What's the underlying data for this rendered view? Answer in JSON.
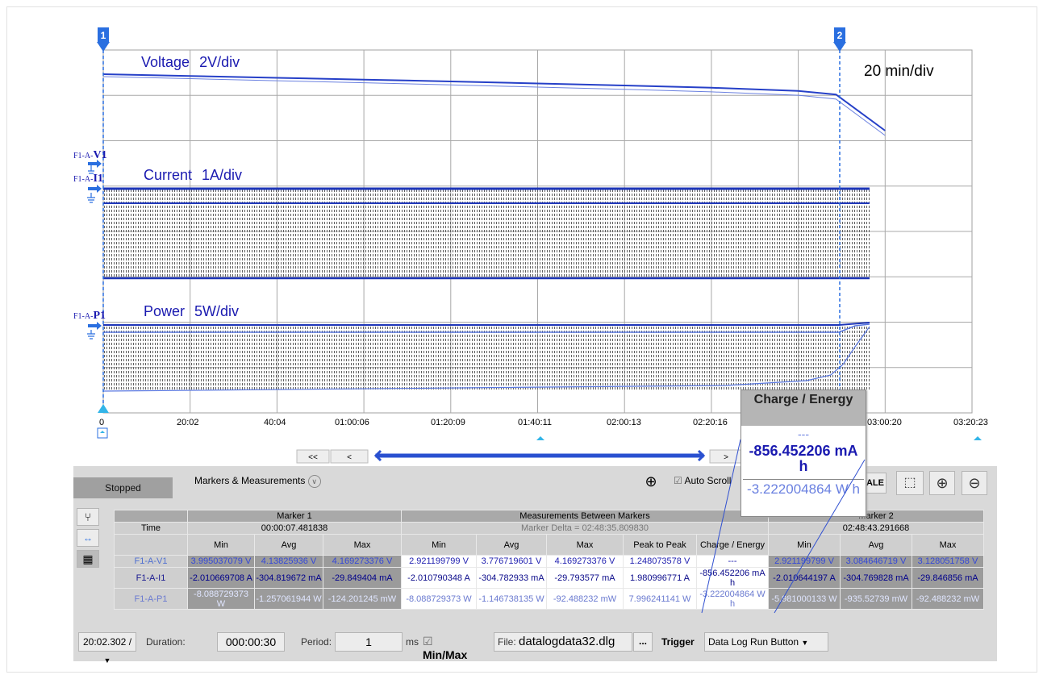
{
  "markers": {
    "m1": "1",
    "m2": "2"
  },
  "plot": {
    "timebase": "20 min/div",
    "voltage": {
      "label": "Voltage",
      "scale": "2V/div",
      "channel_prefix": "F1-A-",
      "channel_name": "V1"
    },
    "current": {
      "label": "Current",
      "scale": "1A/div",
      "channel_prefix": "F1-A-",
      "channel_name": "I1"
    },
    "power": {
      "label": "Power",
      "scale": "5W/div",
      "channel_prefix": "F1-A-",
      "channel_name": "P1"
    }
  },
  "chart_data": {
    "type": "line",
    "x_ticks": [
      "0",
      "20:02",
      "40:04",
      "01:00:06",
      "01:20:09",
      "01:40:11",
      "02:00:13",
      "02:20:16",
      "02:40:18",
      "03:00:20",
      "03:20:23"
    ],
    "series": [
      {
        "name": "F1-A-V1",
        "x_min": [
          0,
          20,
          40,
          60,
          80,
          100,
          120,
          140,
          160,
          168.7,
          180
        ],
        "values_div": [
          0,
          0.08,
          0.16,
          0.24,
          0.32,
          0.41,
          0.5,
          0.6,
          0.74,
          0.9,
          2.5
        ]
      },
      {
        "name": "F1-A-I1",
        "values_div": [
          0,
          0,
          0,
          0,
          0,
          0,
          0,
          0,
          0,
          0,
          0
        ]
      },
      {
        "name": "F1-A-P1",
        "values_div": [
          0,
          0,
          0,
          0,
          0,
          0,
          0,
          0,
          0,
          0,
          0
        ]
      }
    ]
  },
  "nav": {
    "first": "<<",
    "prev": "<",
    "next": ">"
  },
  "panel": {
    "status": "Stopped",
    "markers_measurements": "Markers & Measurements",
    "auto_scroll": "Auto Scroll",
    "scale_btn": "CALE"
  },
  "popup": {
    "header": "Charge / Energy",
    "dashes": "---",
    "charge": "-856.452206 mA h",
    "energy": "-3.222004864 W h"
  },
  "table": {
    "time_label": "Time",
    "m1_title": "Marker 1",
    "m1_time": "00:00:07.481838",
    "between_title": "Measurements Between Markers",
    "between_delta": "Marker Delta = 02:48:35.809830",
    "m2_title": "Marker 2",
    "m2_time": "02:48:43.291668",
    "cols": {
      "min": "Min",
      "avg": "Avg",
      "max": "Max",
      "p2p": "Peak to Peak",
      "charge": "Charge / Energy"
    },
    "row_v": {
      "name": "F1-A-V1",
      "m1_min": "3.995037079 V",
      "m1_avg": "4.13825936 V",
      "m1_max": "4.169273376 V",
      "b_min": "2.921199799 V",
      "b_avg": "3.776719601 V",
      "b_max": "4.169273376 V",
      "b_p2p": "1.248073578 V",
      "b_charge": "---",
      "m2_min": "2.921199799 V",
      "m2_avg": "3.084646719 V",
      "m2_max": "3.128051758 V"
    },
    "row_i": {
      "name": "F1-A-I1",
      "m1_min": "-2.010669708 A",
      "m1_avg": "-304.819672 mA",
      "m1_max": "-29.849404 mA",
      "b_min": "-2.010790348 A",
      "b_avg": "-304.782933 mA",
      "b_max": "-29.793577 mA",
      "b_p2p": "1.980996771 A",
      "b_charge": "-856.452206 mA h",
      "m2_min": "-2.010644197 A",
      "m2_avg": "-304.769828 mA",
      "m2_max": "-29.846856 mA"
    },
    "row_p": {
      "name": "F1-A-P1",
      "m1_min": "-8.088729373 W",
      "m1_avg": "-1.257061944 W",
      "m1_max": "-124.201245 mW",
      "b_min": "-8.088729373 W",
      "b_avg": "-1.146738135 W",
      "b_max": "-92.488232 mW",
      "b_p2p": "7.996241141 W",
      "b_charge": "-3.222004864 W h",
      "m2_min": "-5.981000133 W",
      "m2_avg": "-935.52739 mW",
      "m2_max": "-92.488232 mW"
    }
  },
  "bottom": {
    "time_select": "20:02.302 /",
    "duration_label": "Duration:",
    "duration_value": "000:00:30",
    "period_label": "Period:",
    "period_value": "1",
    "period_unit": "ms",
    "minmax": "Min/Max",
    "file_label": "File:",
    "file_value": "datalogdata32.dlg",
    "browse": "...",
    "trigger_label": "Trigger",
    "trigger_value": "Data Log Run Button"
  },
  "colors": {
    "trace": "#2640c8",
    "marker": "#2a6fe0",
    "grid": "#a8a8a8",
    "panel": "#d9d9d9"
  }
}
